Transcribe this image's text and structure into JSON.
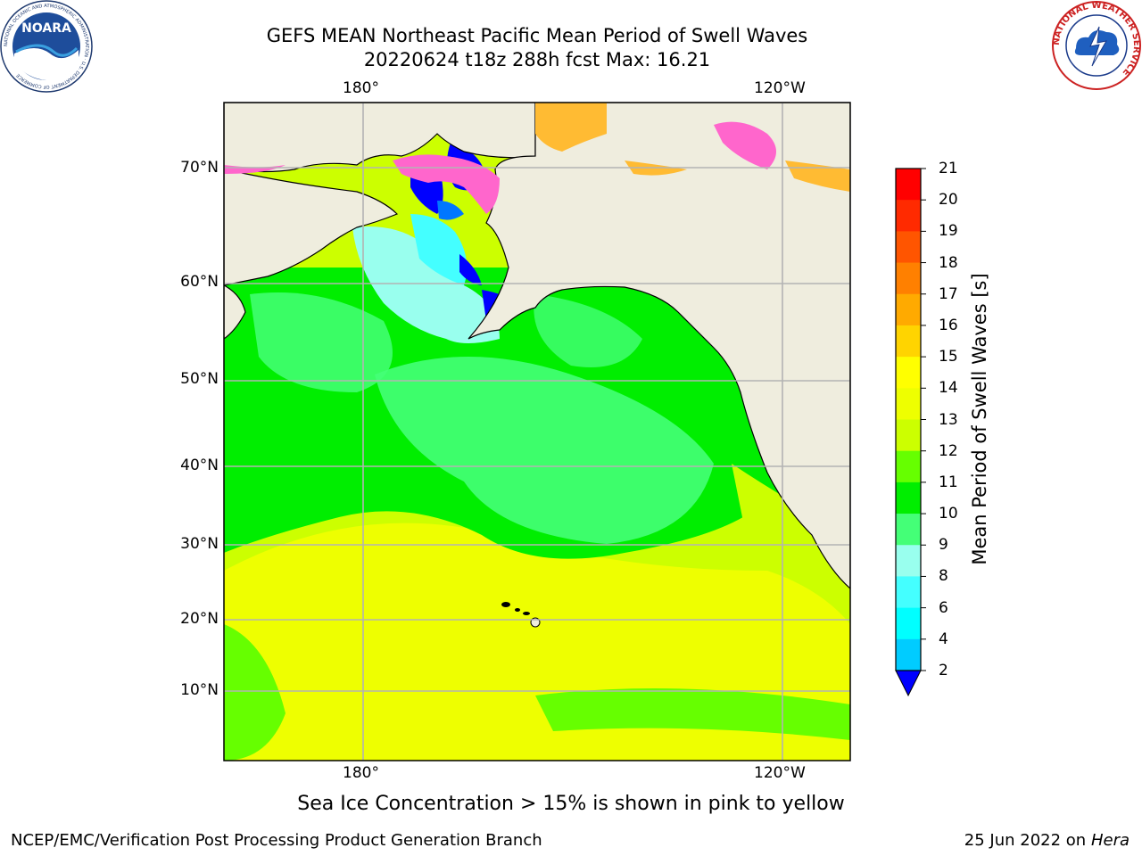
{
  "header": {
    "title": "GEFS MEAN Northeast Pacific Mean Period of Swell Waves",
    "subtitle": "20220624 t18z 288h fcst   Max: 16.21"
  },
  "logos": {
    "left": {
      "name": "NOARA",
      "ring_text": "NATIONAL OCEANIC AND ATMOSPHERIC ADMINISTRATION · U.S. DEPARTMENT OF COMMERCE"
    },
    "right": {
      "ring_text": "NATIONAL WEATHER SERVICE"
    }
  },
  "map": {
    "lon_labels_top": [
      "180°",
      "120°W"
    ],
    "lon_labels_bottom": [
      "180°",
      "120°W"
    ],
    "lat_labels": [
      "70°N",
      "60°N",
      "50°N",
      "40°N",
      "30°N",
      "20°N",
      "10°N"
    ]
  },
  "colorbar": {
    "title": "Mean Period of Swell Waves [s]",
    "ticks": [
      "21",
      "20",
      "19",
      "18",
      "17",
      "16",
      "15",
      "14",
      "13",
      "12",
      "11",
      "10",
      "9",
      "8",
      "6",
      "4",
      "2"
    ],
    "colors": [
      "#ff0000",
      "#ff2a00",
      "#ff5500",
      "#ff8000",
      "#ffaa00",
      "#ffd400",
      "#ffff00",
      "#eeff00",
      "#ccff00",
      "#66ff00",
      "#00ee00",
      "#44ff77",
      "#99ffee",
      "#44ffff",
      "#00ffff",
      "#00ccff",
      "#0077ff"
    ],
    "extend_color": "#0000ff"
  },
  "note": "Sea Ice Concentration > 15% is shown in pink to yellow",
  "footer": {
    "org": "NCEP/EMC/Verification Post Processing Product Generation Branch",
    "date": "25 Jun 2022 on",
    "host": "Hera"
  },
  "colors": {
    "land": "#efedde",
    "ice_pink": "#ff66cc",
    "ice_yellow": "#ffbb33",
    "grid": "#b3b3b3"
  }
}
